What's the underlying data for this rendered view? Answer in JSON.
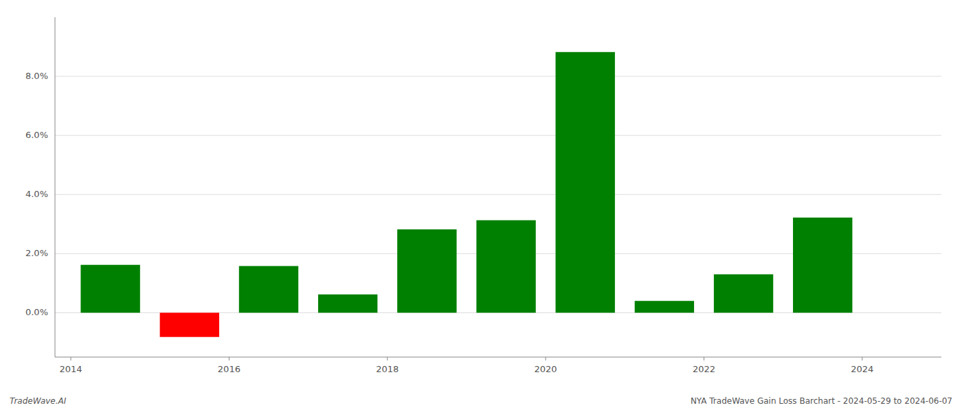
{
  "chart_data": {
    "type": "bar",
    "x": [
      2014.5,
      2015.5,
      2016.5,
      2017.5,
      2018.5,
      2019.5,
      2020.5,
      2021.5,
      2022.5,
      2023.5
    ],
    "values": [
      1.62,
      -0.82,
      1.58,
      0.62,
      2.82,
      3.13,
      8.82,
      0.4,
      1.3,
      3.22
    ],
    "colors": [
      "#008000",
      "#ff0000",
      "#008000",
      "#008000",
      "#008000",
      "#008000",
      "#008000",
      "#008000",
      "#008000",
      "#008000"
    ],
    "xlim": [
      2013.8,
      2025.0
    ],
    "xticks": [
      2014,
      2016,
      2018,
      2020,
      2022,
      2024
    ],
    "ylim": [
      -1.5,
      10.0
    ],
    "yticks": [
      {
        "value": 0.0,
        "label": "0.0%"
      },
      {
        "value": 2.0,
        "label": "2.0%"
      },
      {
        "value": 4.0,
        "label": "4.0%"
      },
      {
        "value": 6.0,
        "label": "6.0%"
      },
      {
        "value": 8.0,
        "label": "8.0%"
      }
    ],
    "grid": true,
    "annotations": [
      "TradeWave.AI",
      "NYA TradeWave Gain Loss Barchart - 2024-05-29 to 2024-06-07"
    ]
  }
}
